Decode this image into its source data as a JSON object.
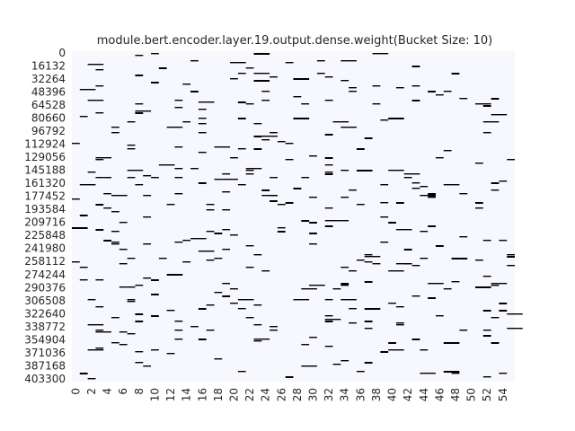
{
  "chart_data": {
    "type": "heatmap",
    "title": "module.bert.encoder.layer.19.output.dense.weight(Bucket Size: 10)",
    "xlabel": "",
    "ylabel": "",
    "colormap": {
      "low": "#f7f8fd",
      "high": "#000000"
    },
    "colorbar": false,
    "grid": false,
    "n_columns": 56,
    "x_tick_labels": [
      "0",
      "2",
      "4",
      "6",
      "8",
      "10",
      "12",
      "14",
      "16",
      "18",
      "20",
      "22",
      "24",
      "26",
      "28",
      "30",
      "32",
      "34",
      "36",
      "38",
      "40",
      "42",
      "44",
      "46",
      "48",
      "50",
      "52",
      "54"
    ],
    "y_tick_labels": [
      "0",
      "16132",
      "32264",
      "48396",
      "64528",
      "80660",
      "96792",
      "112924",
      "129056",
      "145188",
      "161320",
      "177452",
      "193584",
      "209716",
      "225848",
      "241980",
      "258112",
      "274244",
      "290376",
      "306508",
      "322640",
      "338772",
      "354904",
      "371036",
      "387168",
      "403300"
    ],
    "y_tick_step": 16132,
    "y_max": 409000,
    "description_of_values": "Sparse binary mask: each short dark dash marks a nonzero bucket in a given column/row band; background is empty."
  }
}
